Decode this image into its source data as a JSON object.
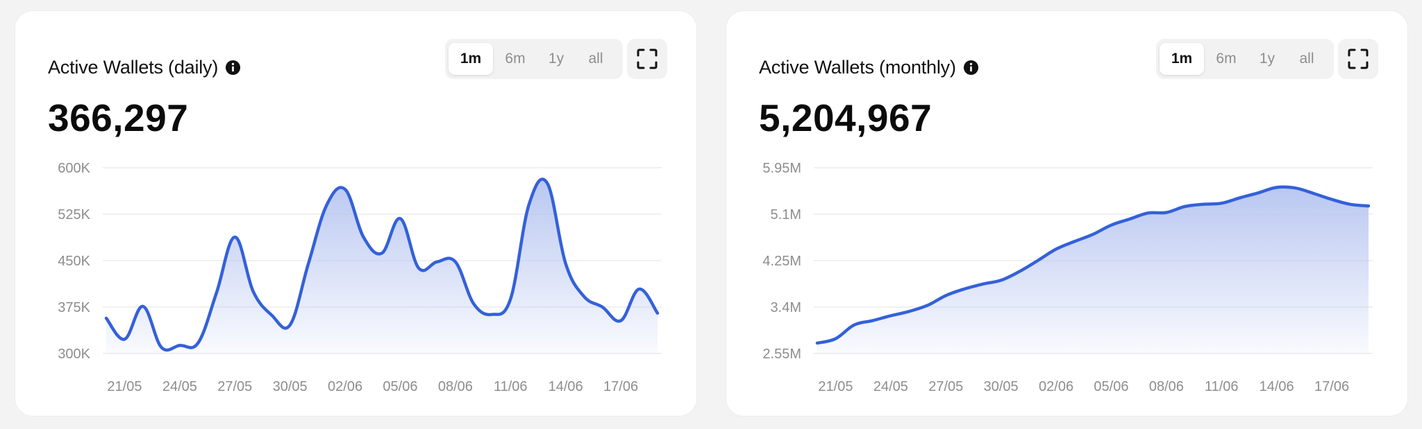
{
  "cards": [
    {
      "title": "Active Wallets (daily)",
      "value": "366,297",
      "ranges": [
        "1m",
        "6m",
        "1y",
        "all"
      ],
      "active_range": "1m",
      "icons": {
        "info": "info-icon",
        "fullscreen": "fullscreen-icon"
      }
    },
    {
      "title": "Active Wallets (monthly)",
      "value": "5,204,967",
      "ranges": [
        "1m",
        "6m",
        "1y",
        "all"
      ],
      "active_range": "1m",
      "icons": {
        "info": "info-icon",
        "fullscreen": "fullscreen-icon"
      }
    }
  ],
  "colors": {
    "line": "#3461d9",
    "fill_top": "#b9c7f1",
    "grid": "#ececec",
    "tick": "#8d8d8d"
  },
  "chart_data": [
    {
      "type": "area",
      "title": "Active Wallets (daily)",
      "x_ticks": [
        "21/05",
        "24/05",
        "27/05",
        "30/05",
        "02/06",
        "05/06",
        "08/06",
        "11/06",
        "14/06",
        "17/06"
      ],
      "y_ticks": [
        "300K",
        "375K",
        "450K",
        "525K",
        "600K"
      ],
      "ylim": [
        300000,
        600000
      ],
      "grid": true,
      "x": [
        "20/05",
        "21/05",
        "22/05",
        "23/05",
        "24/05",
        "25/05",
        "26/05",
        "27/05",
        "28/05",
        "29/05",
        "30/05",
        "31/05",
        "01/06",
        "02/06",
        "03/06",
        "04/06",
        "05/06",
        "06/06",
        "07/06",
        "08/06",
        "09/06",
        "10/06",
        "11/06",
        "12/06",
        "13/06",
        "14/06",
        "15/06",
        "16/06",
        "17/06",
        "18/06",
        "19/06"
      ],
      "values": [
        357000,
        323000,
        376000,
        310000,
        313000,
        317000,
        398000,
        488000,
        400000,
        362000,
        346000,
        445000,
        540000,
        565000,
        488000,
        462000,
        518000,
        438000,
        448000,
        448000,
        380000,
        363000,
        388000,
        540000,
        575000,
        445000,
        392000,
        375000,
        353000,
        404000,
        365000
      ]
    },
    {
      "type": "area",
      "title": "Active Wallets (monthly)",
      "x_ticks": [
        "21/05",
        "24/05",
        "27/05",
        "30/05",
        "02/06",
        "05/06",
        "08/06",
        "11/06",
        "14/06",
        "17/06"
      ],
      "y_ticks": [
        "2.55M",
        "3.4M",
        "4.25M",
        "5.1M",
        "5.95M"
      ],
      "ylim": [
        2550000,
        5950000
      ],
      "grid": true,
      "x": [
        "20/05",
        "21/05",
        "22/05",
        "23/05",
        "24/05",
        "25/05",
        "26/05",
        "27/05",
        "28/05",
        "29/05",
        "30/05",
        "31/05",
        "01/06",
        "02/06",
        "03/06",
        "04/06",
        "05/06",
        "06/06",
        "07/06",
        "08/06",
        "09/06",
        "10/06",
        "11/06",
        "12/06",
        "13/06",
        "14/06",
        "15/06",
        "16/06",
        "17/06",
        "18/06",
        "19/06"
      ],
      "values": [
        2740000,
        2820000,
        3070000,
        3150000,
        3240000,
        3320000,
        3430000,
        3610000,
        3730000,
        3820000,
        3890000,
        4050000,
        4250000,
        4460000,
        4600000,
        4730000,
        4900000,
        5010000,
        5120000,
        5130000,
        5240000,
        5280000,
        5300000,
        5400000,
        5490000,
        5590000,
        5580000,
        5480000,
        5370000,
        5280000,
        5250000
      ]
    }
  ]
}
